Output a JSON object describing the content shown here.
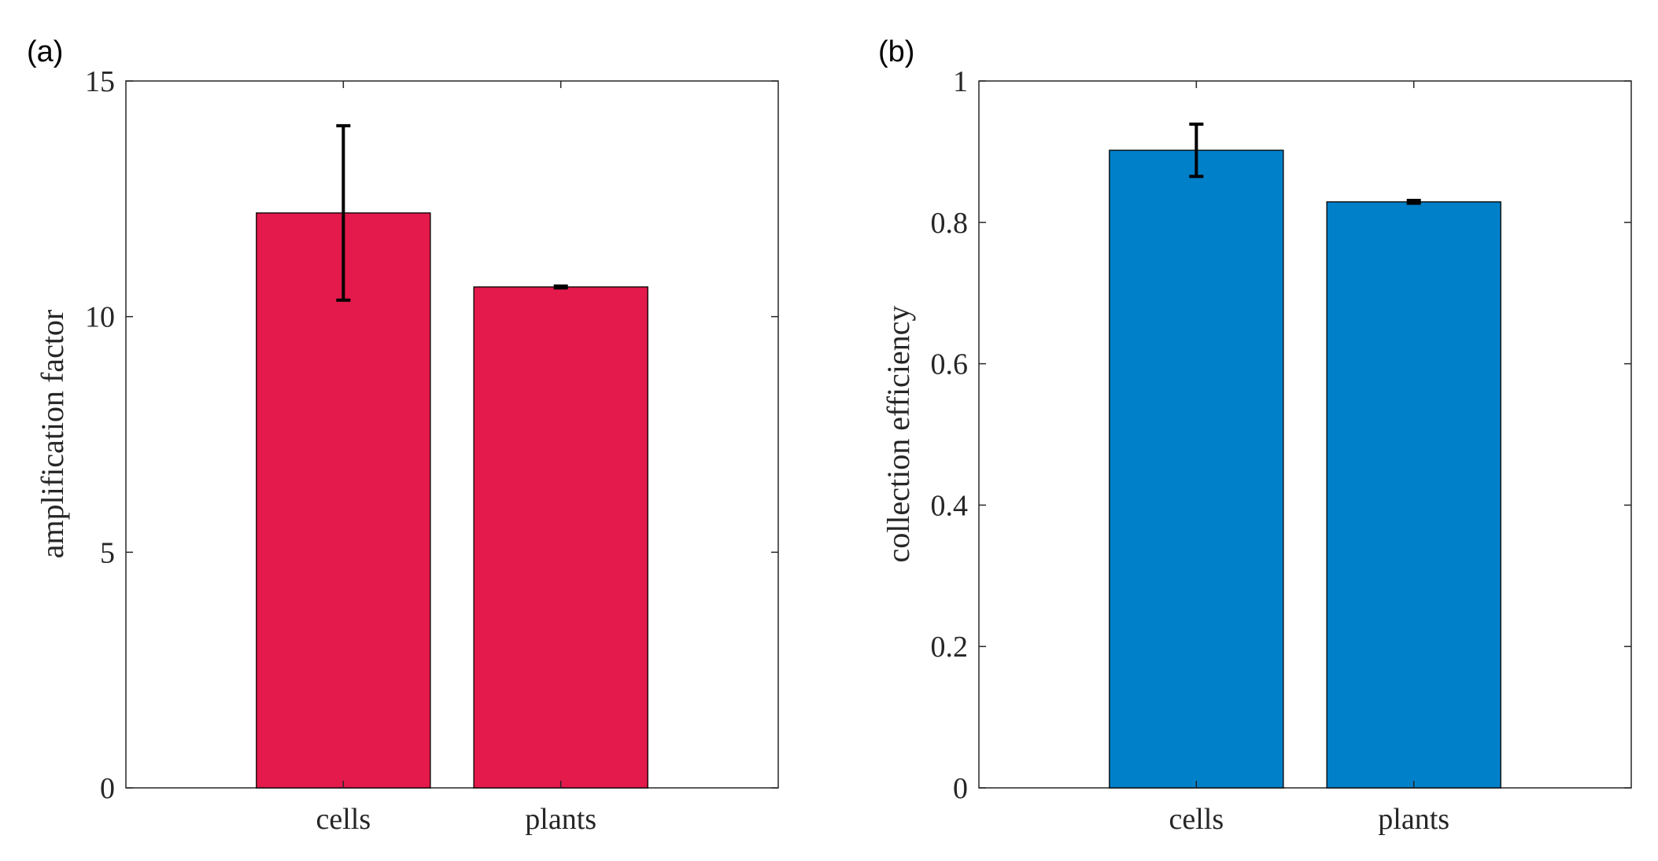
{
  "chart_data": [
    {
      "panel": "(a)",
      "type": "bar",
      "categories": [
        "cells",
        "plants"
      ],
      "values": [
        12.2,
        10.63
      ],
      "errors": [
        1.85,
        0.02
      ],
      "ylabel": "amplification factor",
      "xlabel": "",
      "ylim": [
        0,
        15
      ],
      "yticks": [
        0,
        5,
        10,
        15
      ],
      "ytick_labels": [
        "0",
        "5",
        "10",
        "15"
      ],
      "color": "#E31A4B",
      "grid": false
    },
    {
      "panel": "(b)",
      "type": "bar",
      "categories": [
        "cells",
        "plants"
      ],
      "values": [
        0.902,
        0.829
      ],
      "errors": [
        0.037,
        0.002
      ],
      "ylabel": "collection efficiency",
      "xlabel": "",
      "ylim": [
        0,
        1
      ],
      "yticks": [
        0,
        0.2,
        0.4,
        0.6,
        0.8,
        1
      ],
      "ytick_labels": [
        "0",
        "0.2",
        "0.4",
        "0.6",
        "0.8",
        "1"
      ],
      "color": "#0080C8",
      "grid": false
    }
  ]
}
